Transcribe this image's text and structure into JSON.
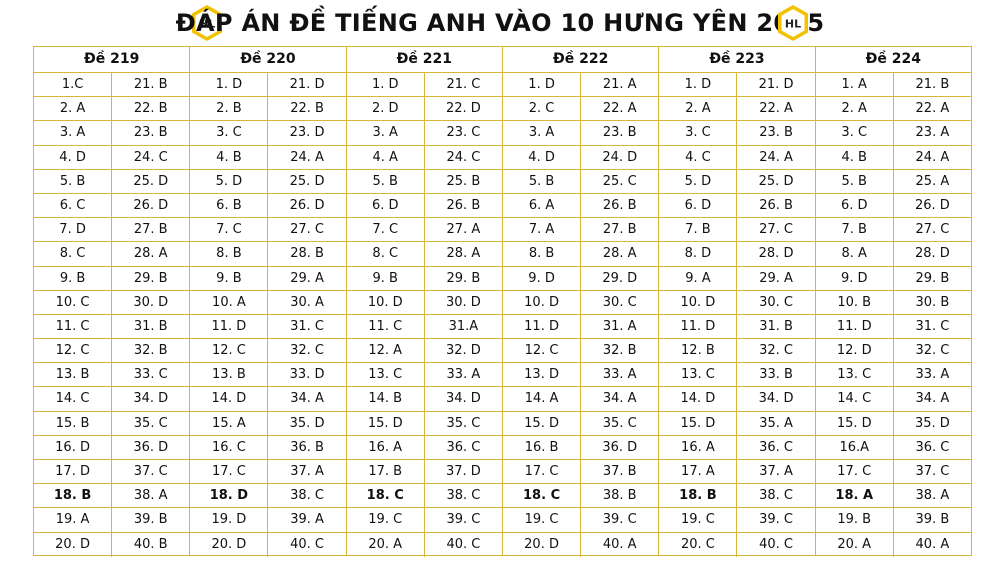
{
  "header": {
    "title": "ĐÁP ÁN ĐỀ TIẾNG ANH VÀO 10 HƯNG YÊN 2025",
    "logo_text": "HL",
    "accent_color": "#d9b734"
  },
  "exams": [
    {
      "code": "Đề 219",
      "col1": [
        "1.C",
        "2. A",
        "3. A",
        "4. D",
        "5. B",
        "6. C",
        "7. D",
        "8. C",
        "9. B",
        "10. C",
        "11. C",
        "12. C",
        "13. B",
        "14. C",
        "15. B",
        "16. D",
        "17. D",
        "18. B",
        "19. A",
        "20. D"
      ],
      "col2": [
        "21. B",
        "22. B",
        "23. B",
        "24. C",
        "25. D",
        "26. D",
        "27. B",
        "28. A",
        "29. B",
        "30. D",
        "31. B",
        "32. B",
        "33. C",
        "34. D",
        "35. C",
        "36. D",
        "37. C",
        "38. A",
        "39. B",
        "40. B"
      ]
    },
    {
      "code": "Đề 220",
      "col1": [
        "1. D",
        "2. B",
        "3. C",
        "4. B",
        "5. D",
        "6. B",
        "7. C",
        "8. B",
        "9. B",
        "10. A",
        "11. D",
        "12. C",
        "13. B",
        "14. D",
        "15. A",
        "16. C",
        "17. C",
        "18. D",
        "19. D",
        "20. D"
      ],
      "col2": [
        "21. D",
        "22. B",
        "23. D",
        "24. A",
        "25. D",
        "26. D",
        "27. C",
        "28. B",
        "29. A",
        "30. A",
        "31. C",
        "32. C",
        "33. D",
        "34. A",
        "35. D",
        "36. B",
        "37. A",
        "38. C",
        "39. A",
        "40. C"
      ]
    },
    {
      "code": "Đề 221",
      "col1": [
        "1. D",
        "2. D",
        "3. A",
        "4. A",
        "5. B",
        "6. D",
        "7. C",
        "8. C",
        "9. B",
        "10. D",
        "11. C",
        "12. A",
        "13. C",
        "14. B",
        "15. D",
        "16. A",
        "17. B",
        "18. C",
        "19. C",
        "20. A"
      ],
      "col2": [
        "21. C",
        "22. D",
        "23. C",
        "24. C",
        "25. B",
        "26. B",
        "27. A",
        "28. A",
        "29. B",
        "30. D",
        "31.A",
        "32. D",
        "33. A",
        "34. D",
        "35. C",
        "36. C",
        "37. D",
        "38. C",
        "39. C",
        "40. C"
      ]
    },
    {
      "code": "Đề 222",
      "col1": [
        "1. D",
        "2. C",
        "3. A",
        "4. D",
        "5. B",
        "6. A",
        "7. A",
        "8. B",
        "9. D",
        "10. D",
        "11. D",
        "12. C",
        "13. D",
        "14. A",
        "15. D",
        "16. B",
        "17. C",
        "18. C",
        "19. C",
        "20. D"
      ],
      "col2": [
        "21. A",
        "22. A",
        "23. B",
        "24. D",
        "25. C",
        "26. B",
        "27. B",
        "28. A",
        "29. D",
        "30. C",
        "31. A",
        "32. B",
        "33. A",
        "34. A",
        "35. C",
        "36. D",
        "37. B",
        "38. B",
        "39. C",
        "40. A"
      ]
    },
    {
      "code": "Đề 223",
      "col1": [
        "1. D",
        "2. A",
        "3. C",
        "4. C",
        "5. D",
        "6. D",
        "7. B",
        "8. D",
        "9. A",
        "10. D",
        "11. D",
        "12. B",
        "13. C",
        "14. D",
        "15. D",
        "16. A",
        "17. A",
        "18. B",
        "19. C",
        "20. C"
      ],
      "col2": [
        "21. D",
        "22. A",
        "23. B",
        "24. A",
        "25. D",
        "26. B",
        "27. C",
        "28. D",
        "29. A",
        "30. C",
        "31. B",
        "32. C",
        "33. B",
        "34. D",
        "35. A",
        "36. C",
        "37. A",
        "38. C",
        "39. C",
        "40. C"
      ]
    },
    {
      "code": "Đề 224",
      "col1": [
        "1.   A",
        "2. A",
        "3. C",
        "4. B",
        "5. B",
        "6. D",
        "7. B",
        "8. A",
        "9. D",
        "10. B",
        "11. D",
        "12. D",
        "13. C",
        "14. C",
        "15. D",
        "16.A",
        "17. C",
        "18. A",
        "19. B",
        "20. A"
      ],
      "col2": [
        "21. B",
        "22. A",
        "23. A",
        "24. A",
        "25. A",
        "26. D",
        "27. C",
        "28. D",
        "29. B",
        "30. B",
        "31. C",
        "32. C",
        "33. A",
        "34. A",
        "35. D",
        "36. C",
        "37. C",
        "38. A",
        "39. B",
        "40. A"
      ]
    }
  ]
}
